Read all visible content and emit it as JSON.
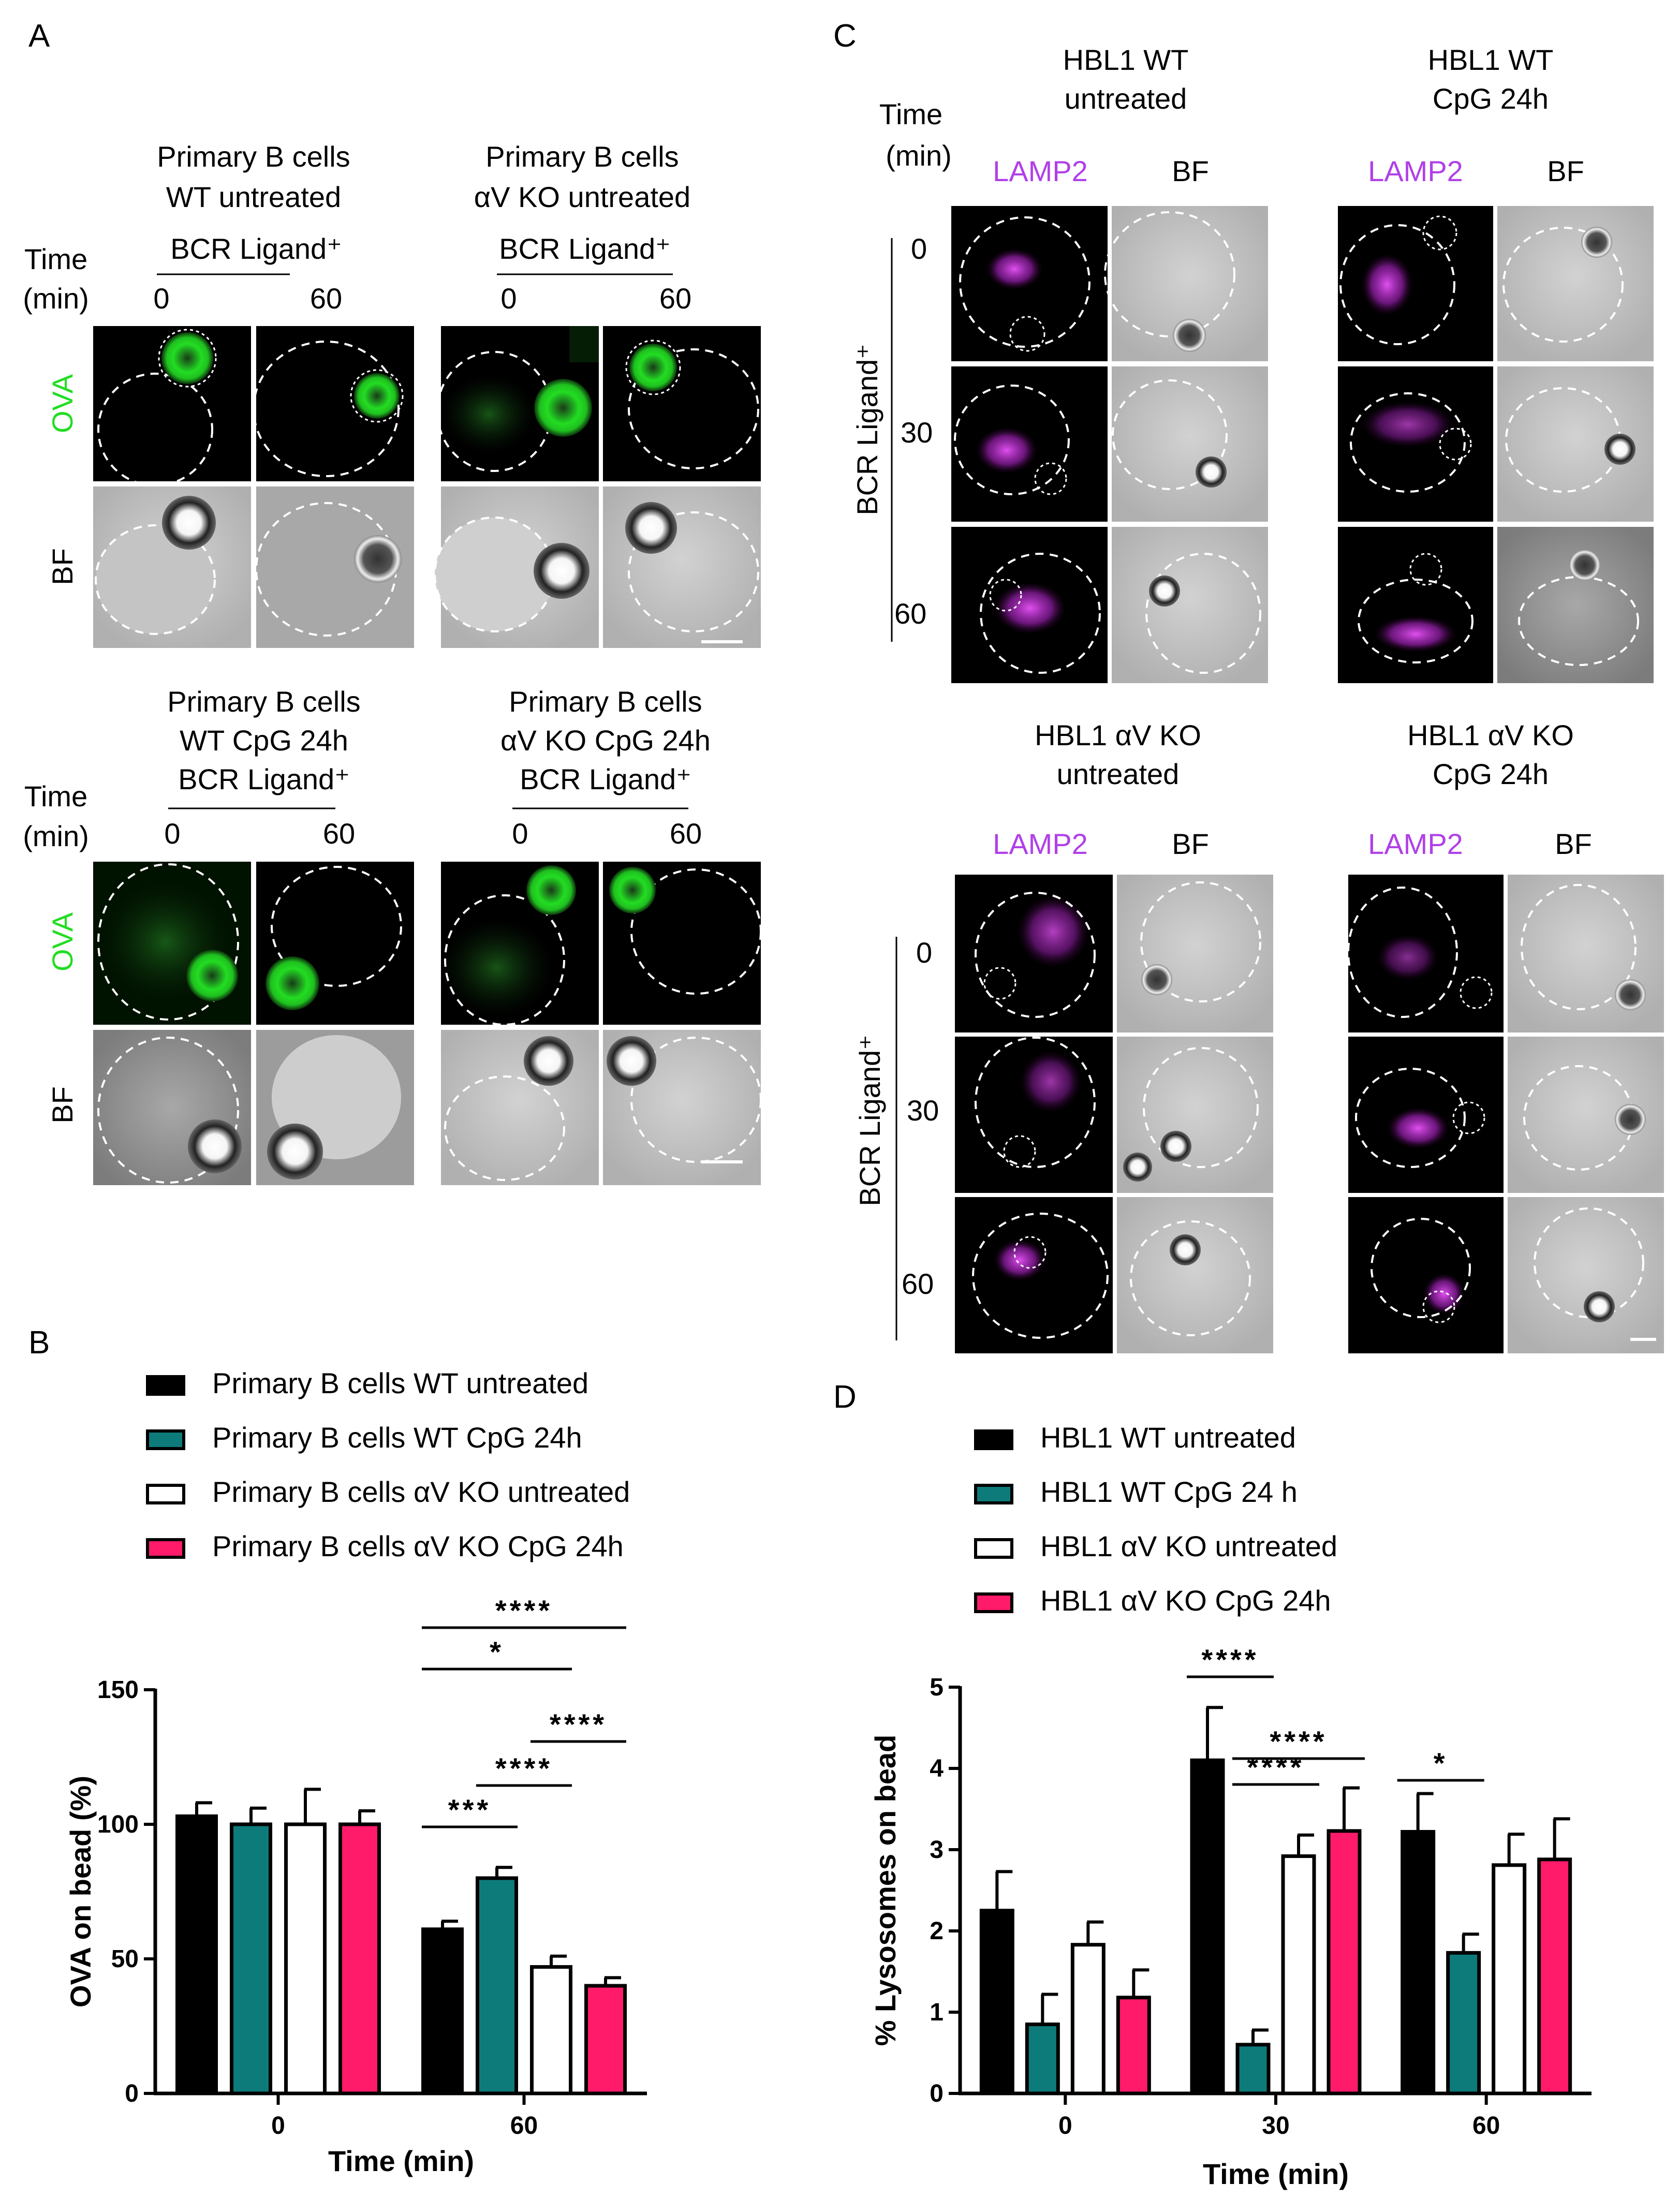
{
  "colors": {
    "black": "#000000",
    "teal": "#0e7b7b",
    "white": "#ffffff",
    "pink": "#ff1a6a",
    "ova_green": "#22dd22",
    "lamp2_magenta": "#b040e8"
  },
  "panel_a": {
    "letter": "A",
    "time_label": "Time",
    "min_label": "(min)",
    "ligand": "BCR Ligand⁺",
    "t0": "0",
    "t60": "60",
    "row_ova": "OVA",
    "row_bf": "BF",
    "group1": {
      "line1": "Primary B cells",
      "line2": "WT untreated"
    },
    "group2": {
      "line1": "Primary B cells",
      "line2": "αV KO untreated"
    },
    "group3": {
      "line1": "Primary B cells",
      "line2": "WT CpG 24h"
    },
    "group4": {
      "line1": "Primary B cells",
      "line2": "αV KO CpG 24h"
    }
  },
  "panel_c": {
    "letter": "C",
    "time_label": "Time",
    "min_label": "(min)",
    "ligand_vertical": "BCR Ligand⁺",
    "col_lamp2": "LAMP2",
    "col_bf": "BF",
    "times": [
      "0",
      "30",
      "60"
    ],
    "g1": {
      "line1": "HBL1 WT",
      "line2": "untreated"
    },
    "g2": {
      "line1": "HBL1 WT",
      "line2": "CpG 24h"
    },
    "g3": {
      "line1": "HBL1 αV KO",
      "line2": "untreated"
    },
    "g4": {
      "line1": "HBL1 αV KO",
      "line2": "CpG 24h"
    }
  },
  "chart_data": [
    {
      "panel": "B",
      "type": "bar",
      "title": "",
      "xlabel": "Time (min)",
      "ylabel": "OVA on bead (%)",
      "categories": [
        "0",
        "60"
      ],
      "ylim": [
        0,
        150
      ],
      "yticks": [
        0,
        50,
        100,
        150
      ],
      "legend_position": "top-left",
      "series": [
        {
          "name": "Primary B cells WT untreated",
          "color": "#000000",
          "values": [
            103,
            61
          ],
          "errors": [
            5,
            3
          ]
        },
        {
          "name": "Primary B cells WT CpG 24h",
          "color": "#0e7b7b",
          "values": [
            100,
            80
          ],
          "errors": [
            6,
            4
          ]
        },
        {
          "name": "Primary B cells αV KO untreated",
          "color": "#ffffff",
          "values": [
            100,
            47
          ],
          "errors": [
            13,
            4
          ]
        },
        {
          "name": "Primary B cells αV KO CpG 24h",
          "color": "#ff1a6a",
          "values": [
            100,
            40
          ],
          "errors": [
            5,
            3
          ]
        }
      ],
      "significance": [
        {
          "category": "60",
          "from": 0,
          "to": 1,
          "label": "***"
        },
        {
          "category": "60",
          "from": 1,
          "to": 2,
          "label": "****"
        },
        {
          "category": "60",
          "from": 2,
          "to": 3,
          "label": "****"
        },
        {
          "category": "60",
          "from": 0,
          "to": 2,
          "label": "*"
        },
        {
          "category": "60",
          "from": 0,
          "to": 3,
          "label": "****"
        }
      ]
    },
    {
      "panel": "D",
      "type": "bar",
      "title": "",
      "xlabel": "Time (min)",
      "ylabel": "% Lysosomes on bead",
      "categories": [
        "0",
        "30",
        "60"
      ],
      "ylim": [
        0,
        5
      ],
      "yticks": [
        0,
        1,
        2,
        3,
        4,
        5
      ],
      "legend_position": "top-left",
      "series": [
        {
          "name": "HBL1 WT untreated",
          "color": "#000000",
          "values": [
            2.25,
            4.1,
            3.22
          ],
          "errors": [
            0.48,
            0.65,
            0.47
          ]
        },
        {
          "name": "HBL1 WT CpG 24 h",
          "color": "#0e7b7b",
          "values": [
            0.85,
            0.6,
            1.73
          ],
          "errors": [
            0.37,
            0.18,
            0.23
          ]
        },
        {
          "name": "HBL1 αV KO untreated",
          "color": "#ffffff",
          "values": [
            1.83,
            2.92,
            2.81
          ],
          "errors": [
            0.28,
            0.26,
            0.38
          ]
        },
        {
          "name": "HBL1 αV KO CpG 24h",
          "color": "#ff1a6a",
          "values": [
            1.18,
            3.23,
            2.88
          ],
          "errors": [
            0.34,
            0.53,
            0.5
          ]
        }
      ],
      "significance": [
        {
          "category": "30",
          "from": 0,
          "to": 1,
          "label": "****"
        },
        {
          "category": "30",
          "from": 1,
          "to": 2,
          "label": "****"
        },
        {
          "category": "30",
          "from": 1,
          "to": 3,
          "label": "****"
        },
        {
          "category": "60",
          "from": 0,
          "to": 1,
          "label": "*"
        }
      ]
    }
  ]
}
